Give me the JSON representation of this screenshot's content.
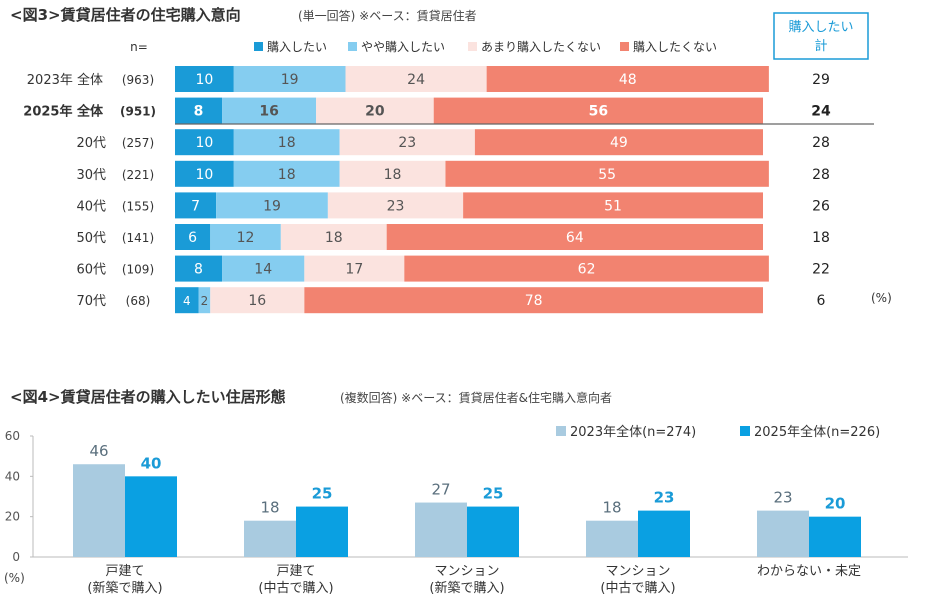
{
  "fig3": {
    "title": "<図3>賃貸居住者の住宅購入意向",
    "subtitle": "(単一回答) ※ベース：賃貸居住者",
    "n_label": "n=",
    "total_header_line1": "購入したい",
    "total_header_line2": "計",
    "percent_unit": "(%)"
  },
  "fig4": {
    "title": "<図4>賃貸居住者の購入したい住居形態",
    "subtitle": "(複数回答) ※ベース：賃貸居住者&住宅購入意向者",
    "y_unit": "(%)"
  },
  "colors": {
    "buy": "#1a9bd7",
    "somewhat_buy": "#85cdf0",
    "not_really": "#fbe3df",
    "not_buy": "#f28370",
    "series2023": "#a9cbe0",
    "series2025": "#0aa0e2",
    "label2025": "#1a9bd7"
  },
  "chart_data": [
    {
      "type": "bar",
      "orientation": "horizontal",
      "stacked": true,
      "title": "<図3>賃貸居住者の住宅購入意向",
      "legend": [
        "購入したい",
        "やや購入したい",
        "あまり購入したくない",
        "購入したくない"
      ],
      "rows": [
        {
          "label": "2023年 全体",
          "n": "(963)",
          "values": [
            10,
            19,
            24,
            48
          ],
          "total": 29,
          "bold": false
        },
        {
          "label": "2025年 全体",
          "n": "(951)",
          "values": [
            8,
            16,
            20,
            56
          ],
          "total": 24,
          "bold": true
        },
        {
          "label": "20代",
          "n": "(257)",
          "values": [
            10,
            18,
            23,
            49
          ],
          "total": 28,
          "bold": false
        },
        {
          "label": "30代",
          "n": "(221)",
          "values": [
            10,
            18,
            18,
            55
          ],
          "total": 28,
          "bold": false
        },
        {
          "label": "40代",
          "n": "(155)",
          "values": [
            7,
            19,
            23,
            51
          ],
          "total": 26,
          "bold": false
        },
        {
          "label": "50代",
          "n": "(141)",
          "values": [
            6,
            12,
            18,
            64
          ],
          "total": 18,
          "bold": false
        },
        {
          "label": "60代",
          "n": "(109)",
          "values": [
            8,
            14,
            17,
            62
          ],
          "total": 22,
          "bold": false
        },
        {
          "label": "70代",
          "n": "(68)",
          "values": [
            4,
            2,
            16,
            78
          ],
          "total": 6,
          "bold": false
        }
      ],
      "xlim": [
        0,
        100
      ]
    },
    {
      "type": "bar",
      "title": "<図4>賃貸居住者の購入したい住居形態",
      "categories": [
        [
          "戸建て",
          "(新築で購入)"
        ],
        [
          "戸建て",
          "(中古で購入)"
        ],
        [
          "マンション",
          "(新築で購入)"
        ],
        [
          "マンション",
          "(中古で購入)"
        ],
        [
          "わからない・未定"
        ]
      ],
      "series": [
        {
          "name": "2023年全体(n=274)",
          "values": [
            46,
            18,
            27,
            18,
            23
          ]
        },
        {
          "name": "2025年全体(n=226)",
          "values": [
            40,
            25,
            25,
            23,
            20
          ]
        }
      ],
      "ylim": [
        0,
        60
      ],
      "yticks": [
        0,
        20,
        40,
        60
      ],
      "ylabel": "(%)",
      "legend_position": "top-right"
    }
  ]
}
